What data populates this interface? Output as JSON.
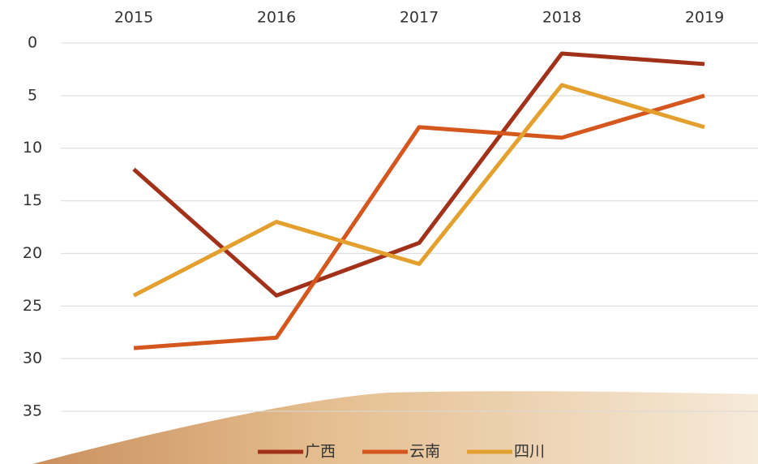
{
  "chart_data": {
    "type": "line",
    "categories": [
      "2015",
      "2016",
      "2017",
      "2018",
      "2019"
    ],
    "series": [
      {
        "name": "广西",
        "color": "#a2311a",
        "values": [
          12,
          24,
          19,
          1,
          2
        ]
      },
      {
        "name": "云南",
        "color": "#d4571e",
        "values": [
          29,
          28,
          8,
          9,
          5
        ]
      },
      {
        "name": "四川",
        "color": "#e3a02f",
        "values": [
          24,
          17,
          21,
          4,
          8
        ]
      }
    ],
    "ylim": [
      0,
      35
    ],
    "yticks": [
      0,
      5,
      10,
      15,
      20,
      25,
      30,
      35
    ],
    "y_reversed": true,
    "grid": true,
    "legend": "bottom"
  }
}
